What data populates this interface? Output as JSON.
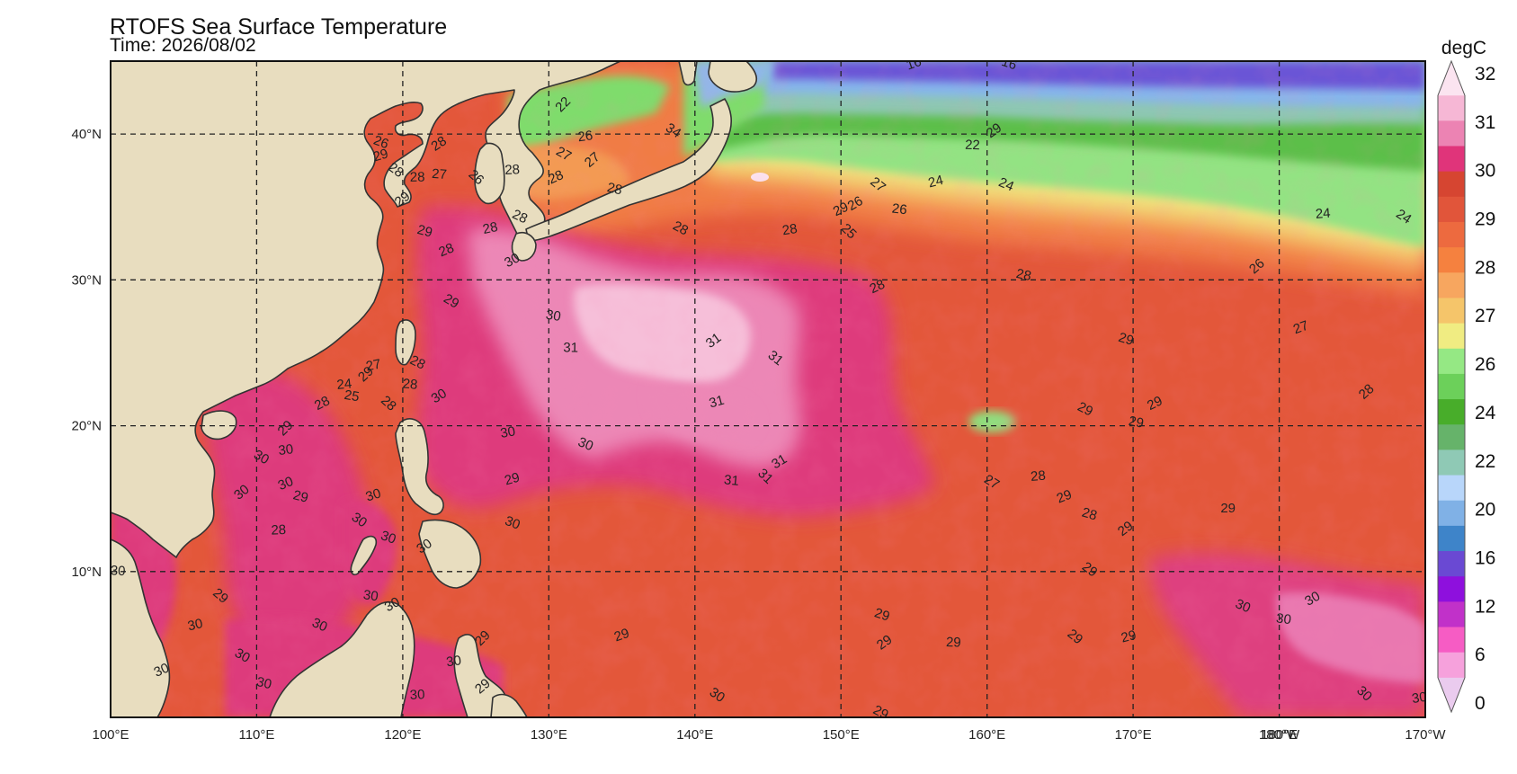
{
  "map": {
    "title": "RTOFS Sea Surface Temperature",
    "subtitle": "Time: 2026/08/02",
    "projection": "equirectangular",
    "lon_range": [
      100,
      190
    ],
    "lat_range": [
      0,
      45
    ],
    "grid_lines": "dashed",
    "lon_ticks": [
      {
        "lon": 100,
        "label": "100°E"
      },
      {
        "lon": 110,
        "label": "110°E"
      },
      {
        "lon": 120,
        "label": "120°E"
      },
      {
        "lon": 130,
        "label": "130°E"
      },
      {
        "lon": 140,
        "label": "140°E"
      },
      {
        "lon": 150,
        "label": "150°E"
      },
      {
        "lon": 160,
        "label": "160°E"
      },
      {
        "lon": 170,
        "label": "170°E"
      },
      {
        "lon": 180,
        "label": "180°E"
      },
      {
        "lon": 180,
        "label": "180°W"
      },
      {
        "lon": 190,
        "label": "170°W"
      }
    ],
    "lat_ticks": [
      {
        "lat": 40,
        "label": "40°N"
      },
      {
        "lat": 30,
        "label": "30°N"
      },
      {
        "lat": 20,
        "label": "20°N"
      },
      {
        "lat": 10,
        "label": "10°N"
      }
    ],
    "colors": {
      "land": "#e8ddbf",
      "coast": "#333333",
      "ocean_default": "#e3573a"
    }
  },
  "colorbar": {
    "unit": "degC",
    "tick_labels": [
      "32",
      "31",
      "30",
      "29",
      "28",
      "27",
      "26",
      "24",
      "22",
      "20",
      "16",
      "12",
      "6",
      "0"
    ],
    "colors_top_to_bottom": [
      "#fbe4f0",
      "#f6b7d5",
      "#ec83b3",
      "#e0347a",
      "#d64531",
      "#e1553a",
      "#ed6a3f",
      "#f5813f",
      "#f7a65f",
      "#f5c56a",
      "#f0ec82",
      "#95e884",
      "#6cd05a",
      "#48ad2a",
      "#66b36a",
      "#8fc9b5",
      "#b8d6fa",
      "#80b1e6",
      "#3e84c9",
      "#6a49d3",
      "#8e10dd",
      "#c131c9",
      "#f65cc4",
      "#f6a1dc",
      "#eacbee"
    ]
  },
  "contour_labels": [
    {
      "text": "22",
      "lon": 131,
      "lat": 42
    },
    {
      "text": "26",
      "lon": 132.5,
      "lat": 39.8
    },
    {
      "text": "27",
      "lon": 131,
      "lat": 38.6
    },
    {
      "text": "28",
      "lon": 130.5,
      "lat": 37
    },
    {
      "text": "28",
      "lon": 134.5,
      "lat": 36.2
    },
    {
      "text": "27",
      "lon": 133,
      "lat": 38.2
    },
    {
      "text": "28",
      "lon": 127.5,
      "lat": 37.5
    },
    {
      "text": "34",
      "lon": 138.5,
      "lat": 40.2
    },
    {
      "text": "16",
      "lon": 155,
      "lat": 44.8
    },
    {
      "text": "16",
      "lon": 161.5,
      "lat": 44.8
    },
    {
      "text": "29",
      "lon": 160.5,
      "lat": 40.2
    },
    {
      "text": "22",
      "lon": 159,
      "lat": 39.2
    },
    {
      "text": "27",
      "lon": 152.5,
      "lat": 36.5
    },
    {
      "text": "24",
      "lon": 156.5,
      "lat": 36.7
    },
    {
      "text": "24",
      "lon": 161.3,
      "lat": 36.5
    },
    {
      "text": "26",
      "lon": 151,
      "lat": 35.2
    },
    {
      "text": "26",
      "lon": 154,
      "lat": 34.8
    },
    {
      "text": "25",
      "lon": 150.5,
      "lat": 33.3
    },
    {
      "text": "28",
      "lon": 146.5,
      "lat": 33.4
    },
    {
      "text": "28",
      "lon": 139,
      "lat": 33.5
    },
    {
      "text": "28",
      "lon": 152.5,
      "lat": 29.5
    },
    {
      "text": "28",
      "lon": 162.5,
      "lat": 30.3
    },
    {
      "text": "26",
      "lon": 178.5,
      "lat": 30.9
    },
    {
      "text": "24",
      "lon": 183,
      "lat": 34.5
    },
    {
      "text": "24",
      "lon": 188.5,
      "lat": 34.3
    },
    {
      "text": "27",
      "lon": 181.5,
      "lat": 26.7
    },
    {
      "text": "29",
      "lon": 169.5,
      "lat": 25.9
    },
    {
      "text": "31",
      "lon": 141.3,
      "lat": 25.8
    },
    {
      "text": "31",
      "lon": 131.5,
      "lat": 25.3
    },
    {
      "text": "31",
      "lon": 145.5,
      "lat": 24.6
    },
    {
      "text": "31",
      "lon": 141.5,
      "lat": 21.6
    },
    {
      "text": "30",
      "lon": 132.5,
      "lat": 18.7
    },
    {
      "text": "31",
      "lon": 145.8,
      "lat": 17.5
    },
    {
      "text": "31",
      "lon": 142.5,
      "lat": 16.2
    },
    {
      "text": "31",
      "lon": 144.8,
      "lat": 16.5
    },
    {
      "text": "30",
      "lon": 127.2,
      "lat": 19.5
    },
    {
      "text": "29",
      "lon": 166.7,
      "lat": 21.1
    },
    {
      "text": "29",
      "lon": 171.5,
      "lat": 21.5
    },
    {
      "text": "29",
      "lon": 170.2,
      "lat": 20.2
    },
    {
      "text": "28",
      "lon": 186,
      "lat": 22.3
    },
    {
      "text": "28",
      "lon": 163.5,
      "lat": 16.5
    },
    {
      "text": "27",
      "lon": 160.3,
      "lat": 16.1
    },
    {
      "text": "29",
      "lon": 165.3,
      "lat": 15.1
    },
    {
      "text": "28",
      "lon": 167,
      "lat": 13.9
    },
    {
      "text": "29",
      "lon": 169.5,
      "lat": 12.9
    },
    {
      "text": "29",
      "lon": 176.5,
      "lat": 14.3
    },
    {
      "text": "29",
      "lon": 167,
      "lat": 10.1
    },
    {
      "text": "29",
      "lon": 127.5,
      "lat": 16.3
    },
    {
      "text": "30",
      "lon": 127.5,
      "lat": 13.3
    },
    {
      "text": "30",
      "lon": 122.5,
      "lat": 22
    },
    {
      "text": "28",
      "lon": 120.5,
      "lat": 22.8
    },
    {
      "text": "28",
      "lon": 119,
      "lat": 21.5
    },
    {
      "text": "27",
      "lon": 118,
      "lat": 24.1
    },
    {
      "text": "28",
      "lon": 121,
      "lat": 24.3
    },
    {
      "text": "28",
      "lon": 114.5,
      "lat": 21.5
    },
    {
      "text": "25",
      "lon": 116.5,
      "lat": 22
    },
    {
      "text": "29",
      "lon": 117.5,
      "lat": 23.5
    },
    {
      "text": "24",
      "lon": 116,
      "lat": 22.8
    },
    {
      "text": "29",
      "lon": 123.3,
      "lat": 28.5
    },
    {
      "text": "28",
      "lon": 123,
      "lat": 32
    },
    {
      "text": "29",
      "lon": 121.5,
      "lat": 33.3
    },
    {
      "text": "29",
      "lon": 120,
      "lat": 35.5
    },
    {
      "text": "28",
      "lon": 121,
      "lat": 37
    },
    {
      "text": "28",
      "lon": 119.5,
      "lat": 37.5
    },
    {
      "text": "29",
      "lon": 118.5,
      "lat": 38.5
    },
    {
      "text": "26",
      "lon": 118.5,
      "lat": 39.4
    },
    {
      "text": "28",
      "lon": 122.5,
      "lat": 39.3
    },
    {
      "text": "27",
      "lon": 122.5,
      "lat": 37.2
    },
    {
      "text": "26",
      "lon": 125,
      "lat": 37
    },
    {
      "text": "28",
      "lon": 126,
      "lat": 33.5
    },
    {
      "text": "28",
      "lon": 128,
      "lat": 34.3
    },
    {
      "text": "30",
      "lon": 127.5,
      "lat": 31.3
    },
    {
      "text": "30",
      "lon": 130.3,
      "lat": 27.5
    },
    {
      "text": "29",
      "lon": 112,
      "lat": 19.8
    },
    {
      "text": "30",
      "lon": 112,
      "lat": 18.3
    },
    {
      "text": "30",
      "lon": 110.3,
      "lat": 17.8
    },
    {
      "text": "30",
      "lon": 112,
      "lat": 16
    },
    {
      "text": "29",
      "lon": 113,
      "lat": 15.1
    },
    {
      "text": "30",
      "lon": 109,
      "lat": 15.4
    },
    {
      "text": "28",
      "lon": 111.5,
      "lat": 12.8
    },
    {
      "text": "30",
      "lon": 117,
      "lat": 13.5
    },
    {
      "text": "30",
      "lon": 118,
      "lat": 15.2
    },
    {
      "text": "30",
      "lon": 119,
      "lat": 12.3
    },
    {
      "text": "30",
      "lon": 121.5,
      "lat": 11.7
    },
    {
      "text": "30",
      "lon": 100.5,
      "lat": 10
    },
    {
      "text": "29",
      "lon": 107.5,
      "lat": 8.3
    },
    {
      "text": "30",
      "lon": 105.8,
      "lat": 6.3
    },
    {
      "text": "30",
      "lon": 114.3,
      "lat": 6.3
    },
    {
      "text": "30",
      "lon": 119.3,
      "lat": 7.7
    },
    {
      "text": "30",
      "lon": 117.8,
      "lat": 8.3
    },
    {
      "text": "29",
      "lon": 125.5,
      "lat": 5.4
    },
    {
      "text": "30",
      "lon": 123.5,
      "lat": 3.8
    },
    {
      "text": "30",
      "lon": 109,
      "lat": 4.2
    },
    {
      "text": "30",
      "lon": 103.5,
      "lat": 3.2
    },
    {
      "text": "30",
      "lon": 110.5,
      "lat": 2.3
    },
    {
      "text": "29",
      "lon": 125.5,
      "lat": 2.1
    },
    {
      "text": "30",
      "lon": 121,
      "lat": 1.5
    },
    {
      "text": "30",
      "lon": 141.5,
      "lat": 1.5
    },
    {
      "text": "29",
      "lon": 135,
      "lat": 5.6
    },
    {
      "text": "29",
      "lon": 152.8,
      "lat": 7
    },
    {
      "text": "29",
      "lon": 153,
      "lat": 5.1
    },
    {
      "text": "29",
      "lon": 157.7,
      "lat": 5.1
    },
    {
      "text": "29",
      "lon": 166,
      "lat": 5.5
    },
    {
      "text": "29",
      "lon": 169.7,
      "lat": 5.5
    },
    {
      "text": "30",
      "lon": 177.5,
      "lat": 7.6
    },
    {
      "text": "30",
      "lon": 182.3,
      "lat": 8.1
    },
    {
      "text": "30",
      "lon": 180.3,
      "lat": 6.7
    },
    {
      "text": "30",
      "lon": 185.8,
      "lat": 1.6
    },
    {
      "text": "30",
      "lon": 189.6,
      "lat": 1.3
    },
    {
      "text": "29",
      "lon": 152.7,
      "lat": 0.3
    },
    {
      "text": "29",
      "lon": 150,
      "lat": 34.8
    }
  ]
}
